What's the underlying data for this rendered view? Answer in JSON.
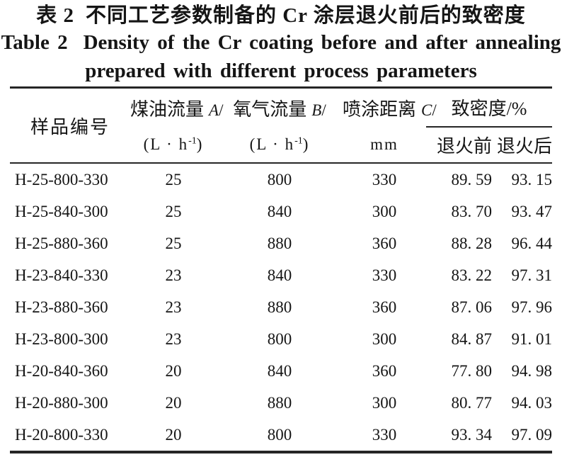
{
  "caption": {
    "zh": {
      "label": "表 2",
      "text": "不同工艺参数制备的 Cr 涂层退火前后的致密度"
    },
    "en": {
      "label": "Table 2",
      "line1": "Density of the Cr coating before and after annealing",
      "line2": "prepared with different process parameters"
    }
  },
  "header": {
    "sample": "样品编号",
    "kerosene": {
      "title": "煤油流量",
      "symbol": "A",
      "slash": "/",
      "unit_prefix": "(L · h",
      "unit_sup": "-1",
      "unit_suffix": ")"
    },
    "oxygen": {
      "title": "氧气流量",
      "symbol": "B",
      "slash": "/",
      "unit_prefix": "(L · h",
      "unit_sup": "-1",
      "unit_suffix": ")"
    },
    "distance": {
      "title": "喷涂距离",
      "symbol": "C",
      "slash": "/",
      "unit": "mm"
    },
    "density": {
      "title": "致密度/%",
      "before": "退火前",
      "after": "退火后"
    }
  },
  "rows": [
    {
      "id": "H-25-800-330",
      "kerosene": "25",
      "oxygen": "800",
      "distance": "330",
      "before": "89. 59",
      "after": "93. 15"
    },
    {
      "id": "H-25-840-300",
      "kerosene": "25",
      "oxygen": "840",
      "distance": "300",
      "before": "83. 70",
      "after": "93. 47"
    },
    {
      "id": "H-25-880-360",
      "kerosene": "25",
      "oxygen": "880",
      "distance": "360",
      "before": "88. 28",
      "after": "96. 44"
    },
    {
      "id": "H-23-840-330",
      "kerosene": "23",
      "oxygen": "840",
      "distance": "330",
      "before": "83. 22",
      "after": "97. 31"
    },
    {
      "id": "H-23-880-360",
      "kerosene": "23",
      "oxygen": "880",
      "distance": "360",
      "before": "87. 06",
      "after": "97. 96"
    },
    {
      "id": "H-23-800-300",
      "kerosene": "23",
      "oxygen": "800",
      "distance": "300",
      "before": "84. 87",
      "after": "91. 01"
    },
    {
      "id": "H-20-840-360",
      "kerosene": "20",
      "oxygen": "840",
      "distance": "360",
      "before": "77. 80",
      "after": "94. 98"
    },
    {
      "id": "H-20-880-300",
      "kerosene": "20",
      "oxygen": "880",
      "distance": "300",
      "before": "80. 77",
      "after": "94. 03"
    },
    {
      "id": "H-20-800-330",
      "kerosene": "20",
      "oxygen": "800",
      "distance": "330",
      "before": "93. 34",
      "after": "97. 09"
    }
  ]
}
